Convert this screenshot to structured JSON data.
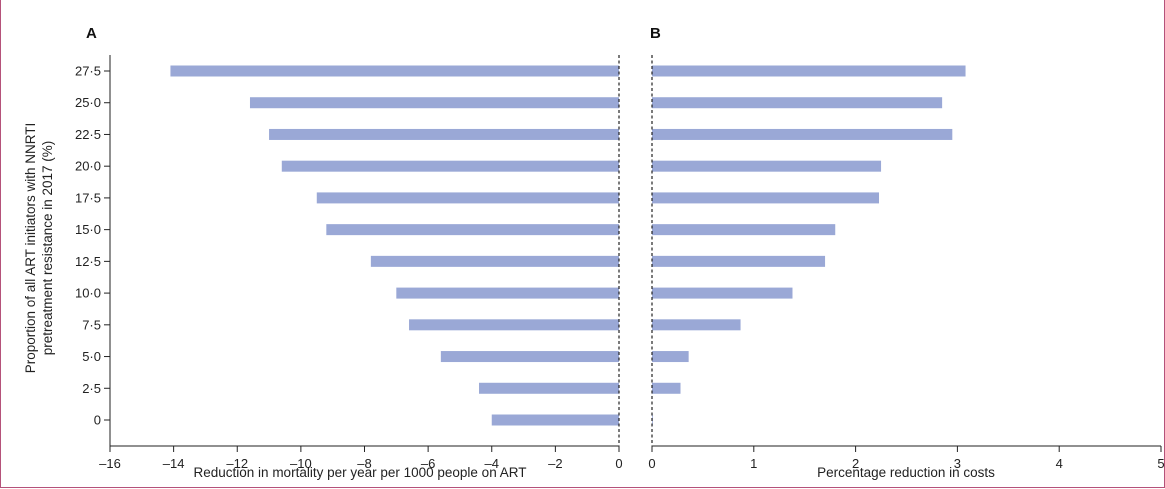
{
  "chart_data": [
    {
      "type": "bar",
      "orientation": "horizontal",
      "panel_label": "A",
      "categories": [
        "0",
        "2·5",
        "5·0",
        "7·5",
        "10·0",
        "12·5",
        "15·0",
        "17·5",
        "20·0",
        "22·5",
        "25·0",
        "27·5"
      ],
      "values": [
        -4.0,
        -4.4,
        -5.6,
        -6.6,
        -7.0,
        -7.8,
        -9.2,
        -9.5,
        -10.6,
        -11.0,
        -11.6,
        -14.1
      ],
      "xlim": [
        -16,
        0
      ],
      "xticks": [
        -16,
        -14,
        -12,
        -10,
        -8,
        -6,
        -4,
        -2,
        0
      ],
      "xtick_labels": [
        "–16",
        "–14",
        "–12",
        "–10",
        "–8",
        "–6",
        "–4",
        "–2",
        "0"
      ],
      "xlabel": "Reduction in mortality per year per 1000 people on ART",
      "ylabel_lines": [
        "Proportion of all ART initiators with NNRTI",
        "pretreatment resistance in 2017 (%)"
      ],
      "bar_color": "#9aa8d6",
      "reference_line_at": 0,
      "grid": false
    },
    {
      "type": "bar",
      "orientation": "horizontal",
      "panel_label": "B",
      "categories": [
        "0",
        "2·5",
        "5·0",
        "7·5",
        "10·0",
        "12·5",
        "15·0",
        "17·5",
        "20·0",
        "22·5",
        "25·0",
        "27·5"
      ],
      "values": [
        0.0,
        0.28,
        0.36,
        0.87,
        1.38,
        1.7,
        1.8,
        2.23,
        2.25,
        2.95,
        2.85,
        3.08
      ],
      "xlim": [
        0,
        5
      ],
      "xticks": [
        0,
        1,
        2,
        3,
        4,
        5
      ],
      "xtick_labels": [
        "0",
        "1",
        "2",
        "3",
        "4",
        "5"
      ],
      "xlabel": "Percentage reduction in costs",
      "bar_color": "#9aa8d6",
      "reference_line_at": 0,
      "grid": false
    }
  ]
}
